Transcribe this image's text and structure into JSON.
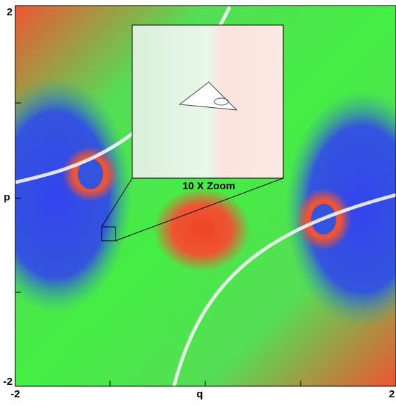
{
  "chart_data": {
    "type": "image",
    "xlabel": "q",
    "ylabel": "p",
    "xlim": [
      -2,
      2
    ],
    "ylim": [
      -2,
      2
    ],
    "xticks": [
      -2,
      2
    ],
    "yticks": [
      -2,
      2
    ],
    "annotation": "10 X Zoom"
  }
}
